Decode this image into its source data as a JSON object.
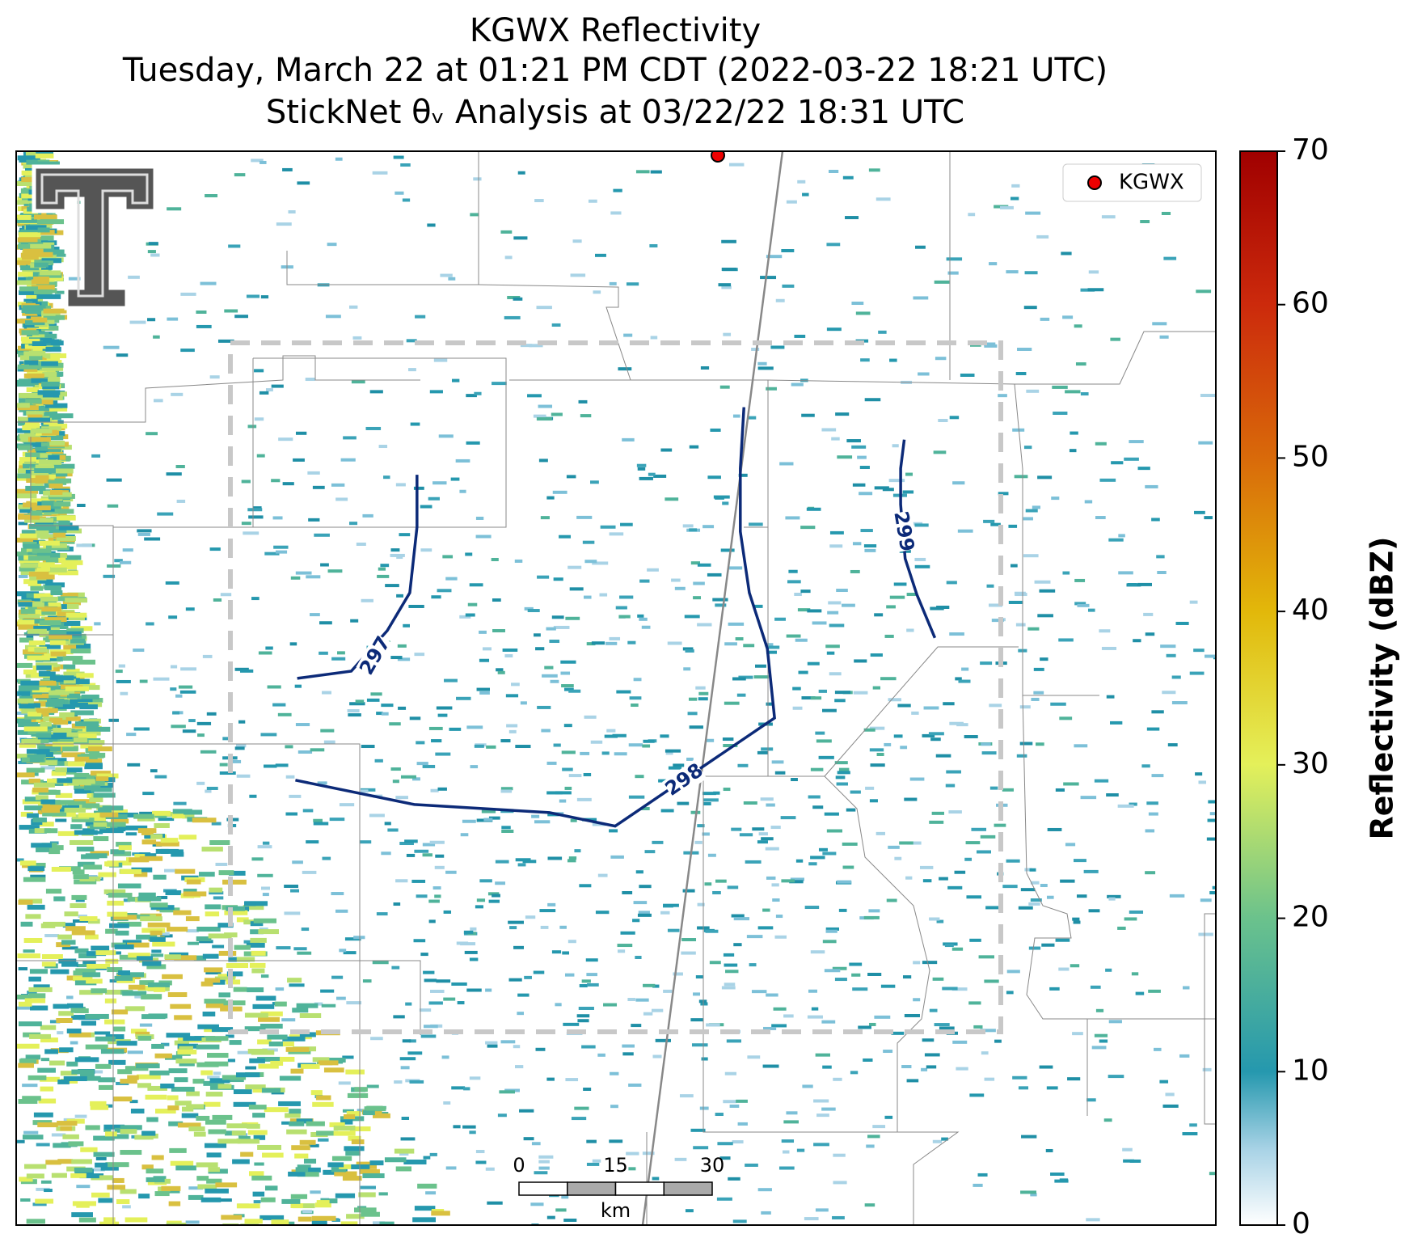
{
  "title": [
    "KGWX Reflectivity",
    "Tuesday, March 22 at 01:21 PM CDT (2022-03-22 18:21 UTC)",
    "StickNet θᵥ Analysis at 03/22/22 18:31 UTC"
  ],
  "legend": {
    "label": "KGWX"
  },
  "colorbar": {
    "label": "Reflectivity (dBZ)",
    "range": [
      0,
      70
    ],
    "ticks": [
      0,
      10,
      20,
      30,
      40,
      50,
      60,
      70
    ]
  },
  "contours": [
    {
      "label": "297"
    },
    {
      "label": "298"
    },
    {
      "label": "299"
    }
  ],
  "scale_bar": {
    "range": [
      0,
      30
    ],
    "ticks": [
      0,
      15,
      30
    ],
    "unit": "km"
  }
}
